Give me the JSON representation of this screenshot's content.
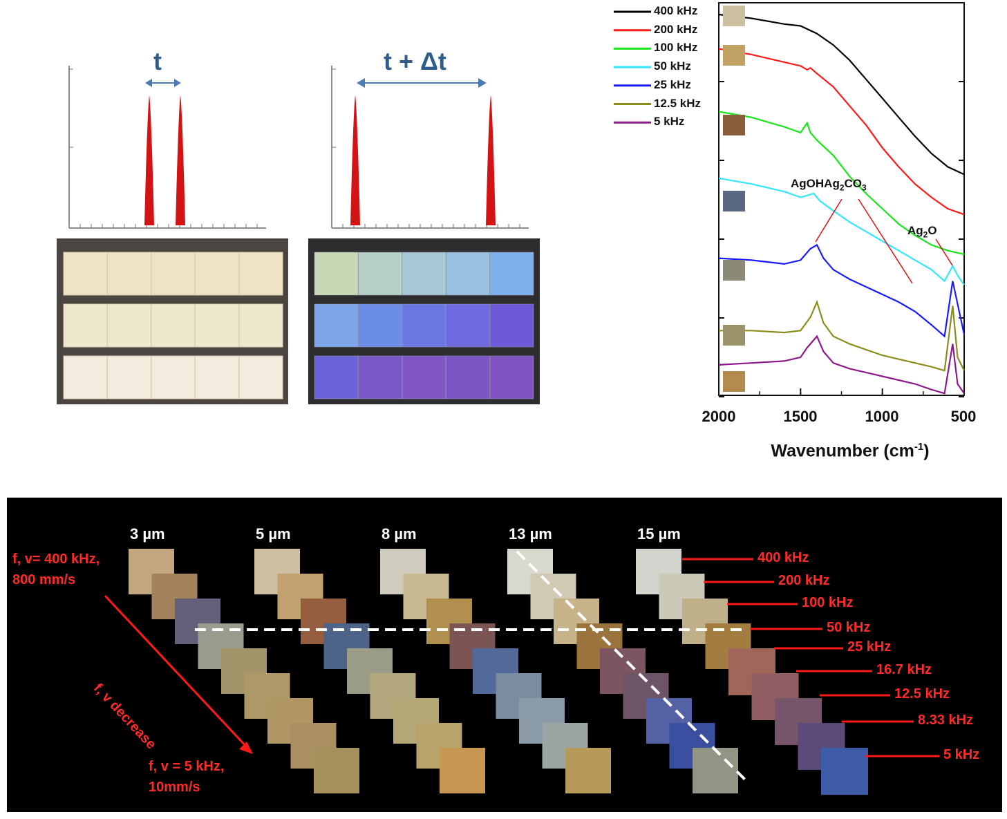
{
  "pulse_panel": {
    "left_label": "t",
    "right_label": "t + Δt"
  },
  "spectra": {
    "xlabel_main": "Wavenumber (cm",
    "xlabel_sup": "-1",
    "xlabel_end": ")",
    "x_ticks": [
      "2000",
      "1500",
      "1000",
      "500"
    ],
    "annotation_1": {
      "parts": [
        "AgOHAg",
        "2",
        "CO",
        "3"
      ]
    },
    "annotation_2": {
      "parts": [
        "Ag",
        "2",
        "O"
      ]
    }
  },
  "chart_data": {
    "type": "line",
    "xlabel": "Wavenumber (cm-1)",
    "ylabel": "",
    "xlim": [
      2000,
      500
    ],
    "x_ticks": [
      2000,
      1500,
      1000,
      500
    ],
    "legend_placement": "top-left",
    "series": [
      {
        "name": "400 kHz",
        "color": "#000000",
        "swatch": "#cbbf9f",
        "x": [
          2000,
          1800,
          1600,
          1500,
          1400,
          1300,
          1200,
          1100,
          1000,
          900,
          800,
          700,
          600,
          500
        ],
        "y": [
          10.0,
          9.9,
          9.75,
          9.7,
          9.5,
          9.2,
          8.8,
          8.3,
          7.8,
          7.3,
          6.8,
          6.35,
          6.0,
          5.8
        ]
      },
      {
        "name": "200 kHz",
        "color": "#ff1a1a",
        "swatch": "#c2a165",
        "x": [
          2000,
          1800,
          1600,
          1500,
          1460,
          1440,
          1400,
          1300,
          1200,
          1100,
          1000,
          900,
          800,
          700,
          600,
          500
        ],
        "y": [
          9.1,
          8.95,
          8.75,
          8.65,
          8.55,
          8.6,
          8.45,
          8.1,
          7.6,
          7.1,
          6.5,
          6.0,
          5.55,
          5.2,
          4.9,
          4.75
        ]
      },
      {
        "name": "100 kHz",
        "color": "#19e619",
        "swatch": "#8b5d3b",
        "x": [
          2000,
          1800,
          1600,
          1500,
          1460,
          1440,
          1400,
          1300,
          1200,
          1100,
          1000,
          900,
          800,
          700,
          600,
          500
        ],
        "y": [
          7.45,
          7.3,
          7.05,
          6.9,
          7.15,
          6.9,
          6.7,
          6.3,
          5.75,
          5.3,
          4.9,
          4.5,
          4.2,
          3.95,
          3.8,
          3.7
        ]
      },
      {
        "name": "50 kHz",
        "color": "#33e6ff",
        "swatch": "#5a6882",
        "x": [
          2000,
          1800,
          1600,
          1500,
          1420,
          1380,
          1300,
          1200,
          1100,
          1000,
          900,
          800,
          700,
          620,
          570,
          540,
          500
        ],
        "y": [
          5.7,
          5.55,
          5.35,
          5.2,
          5.3,
          5.1,
          4.85,
          4.55,
          4.3,
          4.05,
          3.8,
          3.55,
          3.3,
          3.0,
          3.4,
          3.15,
          2.9
        ]
      },
      {
        "name": "25 kHz",
        "color": "#1a1aff",
        "swatch": "#8a8a76",
        "x": [
          2000,
          1800,
          1600,
          1500,
          1440,
          1400,
          1360,
          1300,
          1200,
          1100,
          1000,
          900,
          800,
          700,
          620,
          570,
          540,
          500
        ],
        "y": [
          3.6,
          3.55,
          3.45,
          3.55,
          3.85,
          3.95,
          3.6,
          3.3,
          3.05,
          2.85,
          2.65,
          2.45,
          2.2,
          1.85,
          1.55,
          3.0,
          2.4,
          1.6
        ]
      },
      {
        "name": "12.5 kHz",
        "color": "#8c8c1a",
        "swatch": "#9c926a",
        "x": [
          2000,
          1800,
          1600,
          1500,
          1440,
          1400,
          1360,
          1300,
          1200,
          1100,
          1000,
          900,
          800,
          700,
          620,
          570,
          540,
          500
        ],
        "y": [
          1.7,
          1.7,
          1.65,
          1.7,
          2.05,
          2.45,
          1.9,
          1.55,
          1.35,
          1.2,
          1.05,
          0.95,
          0.85,
          0.75,
          0.65,
          2.35,
          1.0,
          0.65
        ]
      },
      {
        "name": "5 kHz",
        "color": "#8c1a8c",
        "swatch": "#b48a4e",
        "x": [
          2000,
          1800,
          1600,
          1500,
          1460,
          1400,
          1360,
          1300,
          1200,
          1100,
          1000,
          900,
          800,
          700,
          620,
          570,
          540,
          500
        ],
        "y": [
          0.8,
          0.85,
          0.9,
          1.0,
          1.25,
          1.55,
          1.15,
          0.85,
          0.7,
          0.6,
          0.5,
          0.4,
          0.3,
          0.15,
          0.05,
          1.35,
          0.3,
          0.05
        ]
      }
    ]
  },
  "grid": {
    "thickness_labels": [
      "3 µm",
      "5 µm",
      "8 µm",
      "13 µm",
      "15 µm"
    ],
    "frequency_labels": [
      "400 kHz",
      "200 kHz",
      "100 kHz",
      "50 kHz",
      "25 kHz",
      "16.7 kHz",
      "12.5 kHz",
      "8.33 kHz",
      "5 kHz"
    ],
    "top_left_line1": "f, v= 400 kHz,",
    "top_left_line2": "800 mm/s",
    "arrow_label": "f, v decrease",
    "bottom_line1": "f, v = 5 kHz,",
    "bottom_line2": "10mm/s",
    "swatch_colors": [
      [
        "#c2a780",
        "#a3835b",
        "#64607a",
        "#9a9c8e",
        "#a4946a",
        "#ad9868",
        "#b09565",
        "#aa9060",
        "#a5905e"
      ],
      [
        "#cdbf9f",
        "#c1a26e",
        "#955e3e",
        "#4e6388",
        "#9a9c87",
        "#b3a77e",
        "#b5a676",
        "#b8a46b",
        "#c69652"
      ],
      [
        "#d0ccbd",
        "#c8b993",
        "#b18f4f",
        "#7a5554",
        "#53699a",
        "#7b8ca0",
        "#8b9ba8",
        "#9aa6a3",
        "#b59a5a"
      ],
      [
        "#d8d8cf",
        "#d0c9b4",
        "#c6b389",
        "#9b743d",
        "#7b5560",
        "#6e5467",
        "#5462a5",
        "#3b4fa0",
        "#919684"
      ],
      [
        "#d4d4ce",
        "#cbc9b8",
        "#c0b08a",
        "#a27d3f",
        "#a0665a",
        "#915f63",
        "#76556a",
        "#5b4a7a",
        "#3f5ca8"
      ]
    ]
  }
}
